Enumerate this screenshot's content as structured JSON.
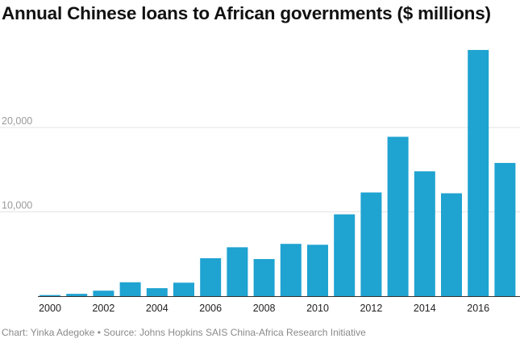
{
  "chart_data": {
    "type": "bar",
    "title": "Annual Chinese loans to African governments ($ millions)",
    "xlabel": "",
    "ylabel": "",
    "categories": [
      "2000",
      "2001",
      "2002",
      "2003",
      "2004",
      "2005",
      "2006",
      "2007",
      "2008",
      "2009",
      "2010",
      "2011",
      "2012",
      "2013",
      "2014",
      "2015",
      "2016",
      "2017"
    ],
    "x_tick_labels": [
      "2000",
      "2002",
      "2004",
      "2006",
      "2008",
      "2010",
      "2012",
      "2014",
      "2016"
    ],
    "values": [
      130,
      280,
      650,
      1650,
      950,
      1600,
      4500,
      5800,
      4400,
      6200,
      6100,
      9700,
      12300,
      18900,
      14800,
      12200,
      29200,
      15800
    ],
    "y_tick_labels": [
      "10,000",
      "20,000"
    ],
    "y_tick_values": [
      10000,
      20000
    ],
    "ylim": [
      0,
      30000
    ],
    "grid": true,
    "bar_color": "#1fa3d1",
    "legend": "none"
  },
  "footer": {
    "credit": "Chart: Yinka Adegoke • Source: Johns Hopkins SAIS China-Africa Research Initiative"
  }
}
